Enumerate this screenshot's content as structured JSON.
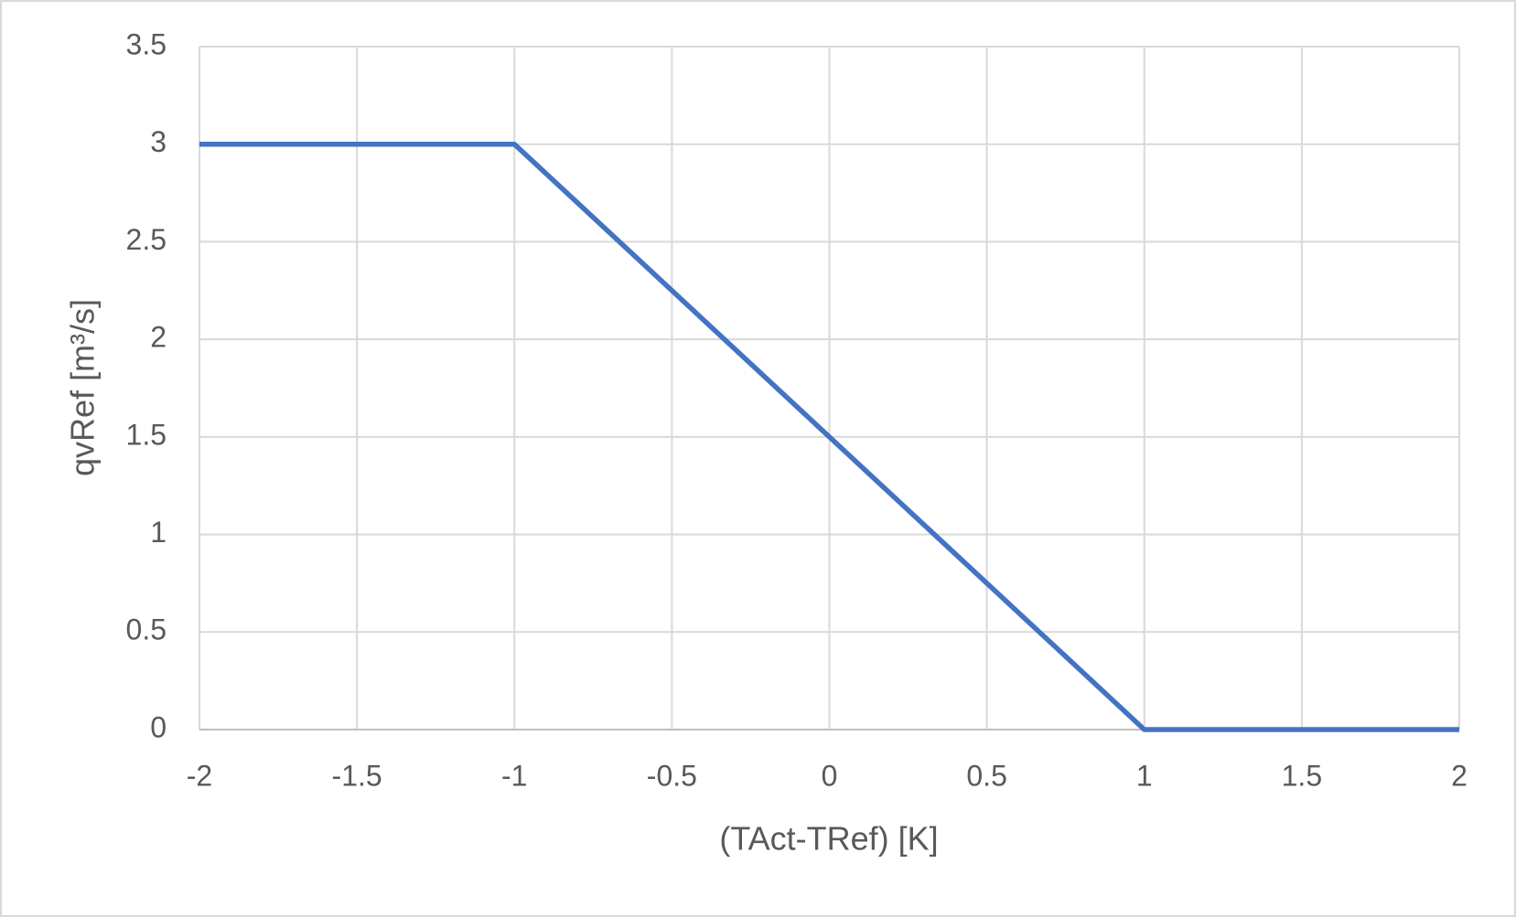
{
  "chart_data": {
    "type": "line",
    "xlabel": "(TAct-TRef) [K]",
    "ylabel": "qvRef [m³/s]",
    "x": [
      -2,
      -1,
      1,
      2
    ],
    "series": [
      {
        "color": "#4472c4",
        "values": [
          3,
          3,
          0,
          0
        ]
      }
    ],
    "xlim": [
      -2,
      2
    ],
    "xticks": [
      -2,
      -1.5,
      -1,
      -0.5,
      0,
      0.5,
      1,
      1.5,
      2
    ],
    "ylim": [
      0,
      3.5
    ],
    "yticks": [
      0,
      0.5,
      1,
      1.5,
      2,
      2.5,
      3,
      3.5
    ],
    "grid": true
  }
}
